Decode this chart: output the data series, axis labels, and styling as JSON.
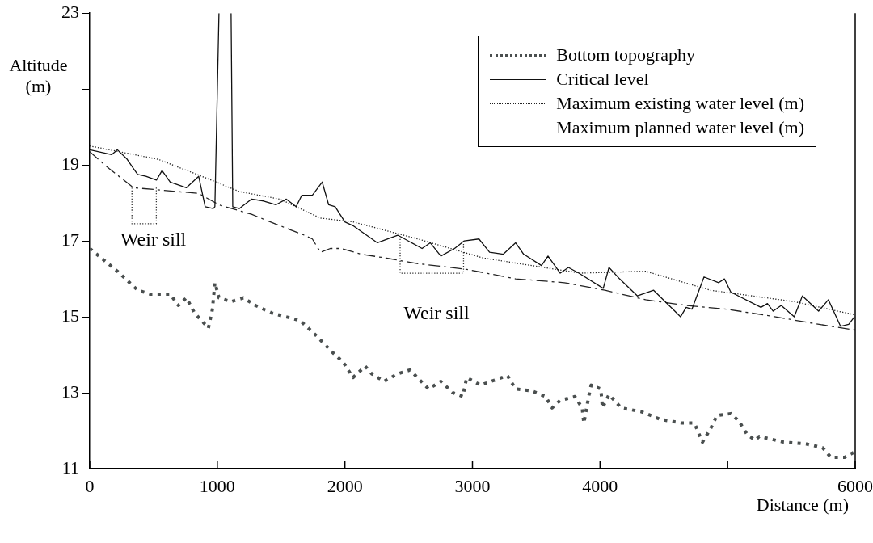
{
  "chart_data": {
    "type": "line",
    "xlabel": "Distance (m)",
    "ylabel": "Altitude (m)",
    "xlim": [
      0,
      6000
    ],
    "xticks": [
      0,
      1000,
      2000,
      3000,
      4000,
      {
        "value": 5000,
        "label": null
      },
      6000
    ],
    "ylim": [
      11,
      23
    ],
    "yticks": [
      11,
      13,
      15,
      17,
      19,
      {
        "value": 21,
        "label": null
      },
      23
    ],
    "grid": false,
    "legend": "top right",
    "marker": "none",
    "series": [
      {
        "name": "Bottom topography",
        "color": "#4a4f4f",
        "line_style": "dotted",
        "x": [
          0,
          217,
          376,
          471,
          631,
          694,
          758,
          822,
          904,
          930,
          962,
          981,
          1013,
          1108,
          1204,
          1299,
          1427,
          1650,
          1777,
          1892,
          1987,
          2064,
          2159,
          2210,
          2306,
          2414,
          2510,
          2656,
          2752,
          2847,
          2924,
          2955,
          3064,
          3146,
          3274,
          3338,
          3465,
          3573,
          3624,
          3688,
          3803,
          3860,
          3873,
          3911,
          3930,
          4006,
          4019,
          4070,
          4166,
          4325,
          4471,
          4643,
          4739,
          4803,
          4866,
          4917,
          5025,
          5089,
          5153,
          5217,
          5248,
          5312,
          5439,
          5618,
          5745,
          5809,
          5917,
          6000
        ],
        "values": [
          16.8,
          16.2,
          15.7,
          15.6,
          15.6,
          15.3,
          15.5,
          15.1,
          14.8,
          14.7,
          15.2,
          15.9,
          15.5,
          15.4,
          15.5,
          15.3,
          15.1,
          14.9,
          14.5,
          14.1,
          13.8,
          13.4,
          13.7,
          13.5,
          13.3,
          13.5,
          13.6,
          13.1,
          13.3,
          13.0,
          12.9,
          13.4,
          13.2,
          13.3,
          13.45,
          13.1,
          13.05,
          12.9,
          12.6,
          12.8,
          12.9,
          12.6,
          12.2,
          12.9,
          13.2,
          13.1,
          12.6,
          12.95,
          12.6,
          12.5,
          12.3,
          12.2,
          12.2,
          11.7,
          12.05,
          12.4,
          12.45,
          12.25,
          11.9,
          11.75,
          11.85,
          11.8,
          11.7,
          11.65,
          11.55,
          11.3,
          11.3,
          11.45
        ]
      },
      {
        "name": "Critical level",
        "color": "#111111",
        "line_style": "solid",
        "x": [
          0,
          172,
          217,
          293,
          344,
          376,
          440,
          523,
          567,
          631,
          758,
          854,
          905,
          968,
          981,
          1013,
          1060,
          1108,
          1121,
          1172,
          1268,
          1363,
          1459,
          1541,
          1618,
          1662,
          1745,
          1822,
          1873,
          1924,
          2000,
          2064,
          2255,
          2414,
          2605,
          2669,
          2752,
          2860,
          2936,
          3051,
          3134,
          3242,
          3338,
          3401,
          3541,
          3592,
          3688,
          3752,
          3834,
          4025,
          4070,
          4153,
          4293,
          4420,
          4631,
          4675,
          4720,
          4815,
          4930,
          4975,
          5025,
          5261,
          5312,
          5357,
          5420,
          5522,
          5586,
          5713,
          5790,
          5885,
          5949,
          5994
        ],
        "values": [
          19.4,
          19.27,
          19.4,
          19.15,
          18.9,
          18.75,
          18.7,
          18.6,
          18.85,
          18.55,
          18.4,
          18.7,
          17.9,
          17.85,
          17.9,
          23,
          null,
          23,
          17.9,
          17.85,
          18.1,
          18.05,
          17.95,
          18.1,
          17.9,
          18.2,
          18.2,
          18.55,
          17.95,
          17.9,
          17.5,
          17.4,
          16.95,
          17.15,
          16.8,
          16.95,
          16.6,
          16.8,
          17.0,
          17.05,
          16.7,
          16.65,
          16.95,
          16.65,
          16.35,
          16.6,
          16.15,
          16.3,
          16.15,
          15.75,
          16.3,
          16.0,
          15.55,
          15.7,
          15.0,
          15.25,
          15.2,
          16.05,
          15.9,
          16.0,
          15.65,
          15.25,
          15.35,
          15.15,
          15.3,
          15.0,
          15.55,
          15.15,
          15.45,
          14.75,
          14.8,
          15.0
        ]
      },
      {
        "name": "Maximum existing water level  (m)",
        "color": "#222222",
        "line_style": "dotted",
        "x": [
          0,
          535,
          917,
          1172,
          1490,
          1809,
          2064,
          2573,
          3083,
          3847,
          4357,
          4866,
          5522,
          6000
        ],
        "values": [
          19.5,
          19.15,
          18.65,
          18.3,
          18.1,
          17.6,
          17.5,
          17.05,
          16.55,
          16.15,
          16.2,
          15.7,
          15.4,
          15.05
        ]
      },
      {
        "name": "Maximum planned water level  (m)",
        "color": "#222222",
        "line_style": "dashed",
        "x": [
          0,
          153,
          344,
          854,
          1013,
          1268,
          1490,
          1682,
          1745,
          1809,
          1886,
          1968,
          2127,
          2318,
          2573,
          2955,
          3338,
          3720,
          4038,
          4357,
          4675,
          4994,
          5376,
          5631,
          6000
        ],
        "values": [
          19.35,
          18.9,
          18.4,
          18.25,
          17.95,
          17.7,
          17.4,
          17.15,
          17.05,
          16.7,
          16.8,
          16.8,
          16.65,
          16.55,
          16.4,
          16.25,
          16.0,
          15.9,
          15.7,
          15.45,
          15.3,
          15.2,
          15.0,
          14.85,
          14.65
        ]
      },
      {
        "color": "#333333",
        "line_style": "dotted",
        "x": [
          331,
          331,
          522,
          522
        ],
        "values": [
          18.4,
          17.45,
          17.45,
          18.4
        ]
      },
      {
        "color": "#333333",
        "line_style": "dotted",
        "x": [
          2433,
          2433,
          2930,
          2930
        ],
        "values": [
          17.05,
          16.15,
          16.15,
          17.0
        ]
      }
    ],
    "annotations": [
      "Weir sill",
      "Weir sill"
    ]
  }
}
